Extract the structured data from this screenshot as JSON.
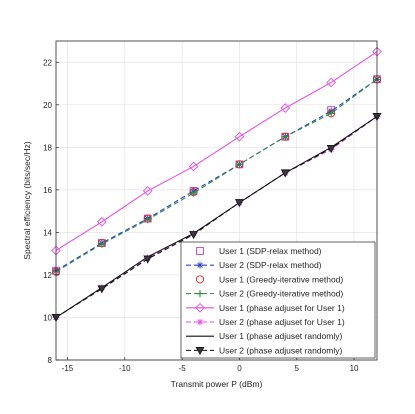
{
  "chart_data": {
    "type": "line",
    "xlabel": "Transmit power P (dBm)",
    "ylabel": "Spectral efficiency (bits/sec/Hz)",
    "xlim": [
      -16,
      12
    ],
    "ylim": [
      8,
      23
    ],
    "x_ticks": [
      -15,
      -10,
      -5,
      0,
      5,
      10
    ],
    "y_ticks": [
      8,
      10,
      12,
      14,
      16,
      18,
      20,
      22
    ],
    "grid": true,
    "legend_position": "bottom-right",
    "x": [
      -16,
      -12,
      -8,
      -4,
      0,
      4,
      8,
      12
    ],
    "series": [
      {
        "name": "User 1 (SDP-relax method)",
        "color": "#b23fbf",
        "dash": "",
        "marker": "square",
        "showLine": false,
        "values": [
          12.2,
          13.5,
          14.65,
          15.95,
          17.2,
          18.5,
          19.75,
          21.2
        ]
      },
      {
        "name": "User 2 (SDP-relax method)",
        "color": "#2a3fd6",
        "dash": "5,3",
        "marker": "asterisk",
        "showLine": true,
        "values": [
          12.2,
          13.5,
          14.65,
          15.95,
          17.2,
          18.5,
          19.7,
          21.2
        ]
      },
      {
        "name": "User 1 (Greedy-iterative method)",
        "color": "#e3261f",
        "dash": "",
        "marker": "circle",
        "showLine": false,
        "values": [
          12.15,
          13.5,
          14.65,
          15.9,
          17.2,
          18.5,
          19.6,
          21.2
        ]
      },
      {
        "name": "User 2 (Greedy-iterative method)",
        "color": "#2e8b3a",
        "dash": "5,3",
        "marker": "plus",
        "showLine": true,
        "values": [
          12.15,
          13.45,
          14.6,
          15.85,
          17.2,
          18.5,
          19.6,
          21.2
        ]
      },
      {
        "name": "User 1 (phase adjuset for User 1)",
        "color": "#e64ce6",
        "dash": "",
        "marker": "diamond",
        "showLine": true,
        "values": [
          13.15,
          14.5,
          15.95,
          17.1,
          18.5,
          19.85,
          21.05,
          22.5
        ]
      },
      {
        "name": "User 2 (phase adjuset for User 1)",
        "color": "#e64ce6",
        "dash": "5,3",
        "marker": "asterisk",
        "showLine": true,
        "values": [
          10.0,
          11.4,
          12.8,
          13.95,
          15.4,
          16.8,
          17.9,
          19.45
        ]
      },
      {
        "name": "User 1 (phase adjuset randomly)",
        "color": "#111111",
        "dash": "",
        "marker": "none",
        "showLine": true,
        "values": [
          10.0,
          11.4,
          12.85,
          13.95,
          15.4,
          16.8,
          18.0,
          19.45
        ]
      },
      {
        "name": "User 2 (phase adjuset randomly)",
        "color": "#111111",
        "dash": "5,3",
        "marker": "triangle-down",
        "showLine": true,
        "values": [
          10.0,
          11.35,
          12.75,
          13.9,
          15.4,
          16.8,
          17.95,
          19.45
        ]
      }
    ]
  }
}
